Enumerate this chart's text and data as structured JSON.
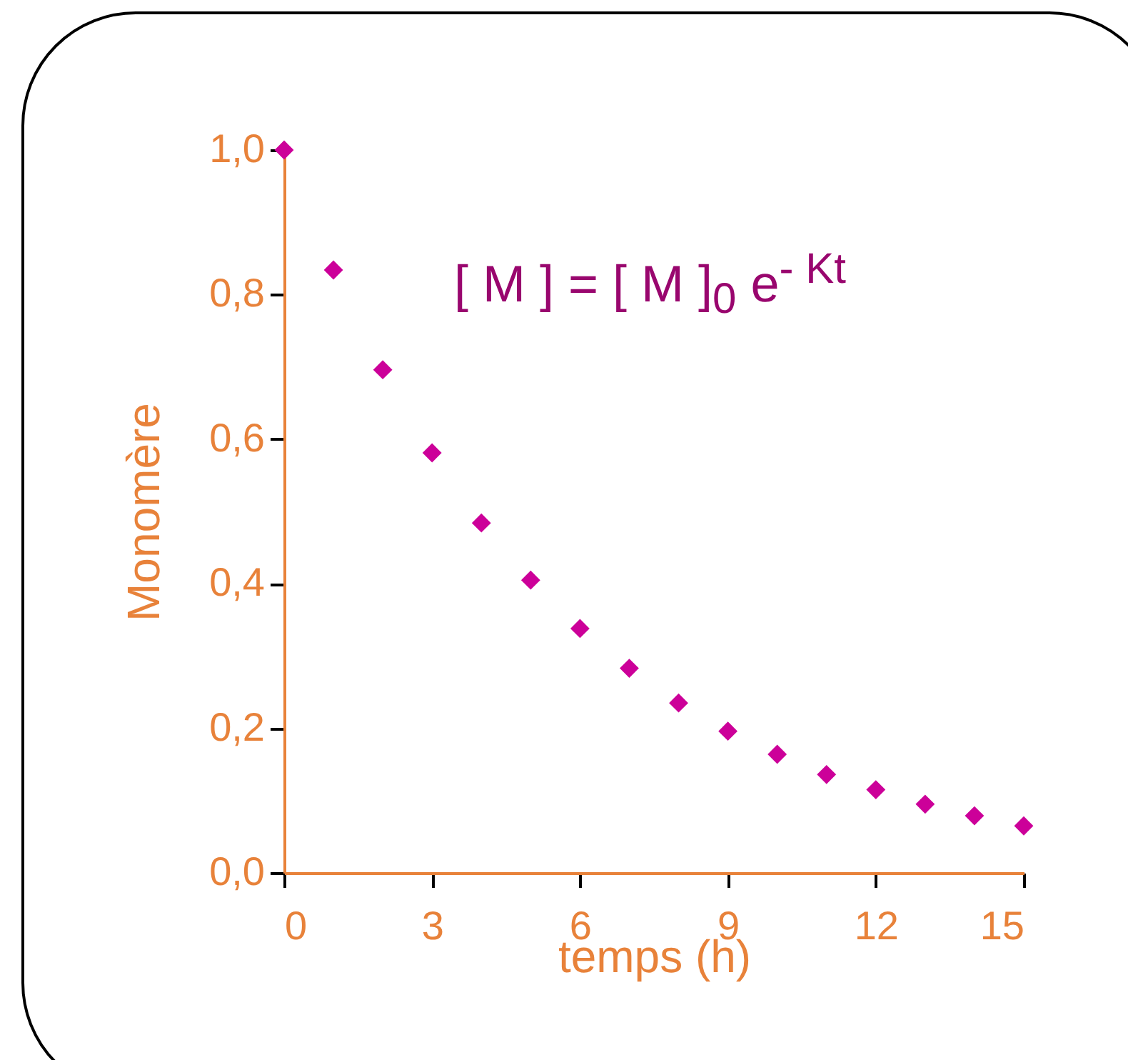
{
  "chart_data": {
    "type": "scatter",
    "xlabel": "temps (h)",
    "ylabel": "Monomère",
    "x": [
      0,
      1,
      2,
      3,
      4,
      5,
      6,
      7,
      8,
      9,
      10,
      11,
      12,
      13,
      14,
      15
    ],
    "series": [
      {
        "color": "#cc0099",
        "values": [
          1.0,
          0.834,
          0.696,
          0.581,
          0.484,
          0.405,
          0.338,
          0.283,
          0.235,
          0.196,
          0.164,
          0.136,
          0.115,
          0.095,
          0.079,
          0.065
        ]
      }
    ],
    "xlim": [
      0,
      15
    ],
    "xticks": [
      0,
      3,
      6,
      9,
      12,
      15
    ],
    "ylim": [
      0,
      1
    ],
    "yticks": [
      {
        "value": 0,
        "label": "0,0"
      },
      {
        "value": 0.2,
        "label": "0,2"
      },
      {
        "value": 0.4,
        "label": "0,4"
      },
      {
        "value": 0.6,
        "label": "0,6"
      },
      {
        "value": 0.8,
        "label": "0,8"
      },
      {
        "value": 1,
        "label": "1,0"
      }
    ],
    "marker": "diamond",
    "grid": false,
    "annotations": [
      "[ M ] = [ M ]$_{0}$ e$^{- Kt}$"
    ]
  }
}
